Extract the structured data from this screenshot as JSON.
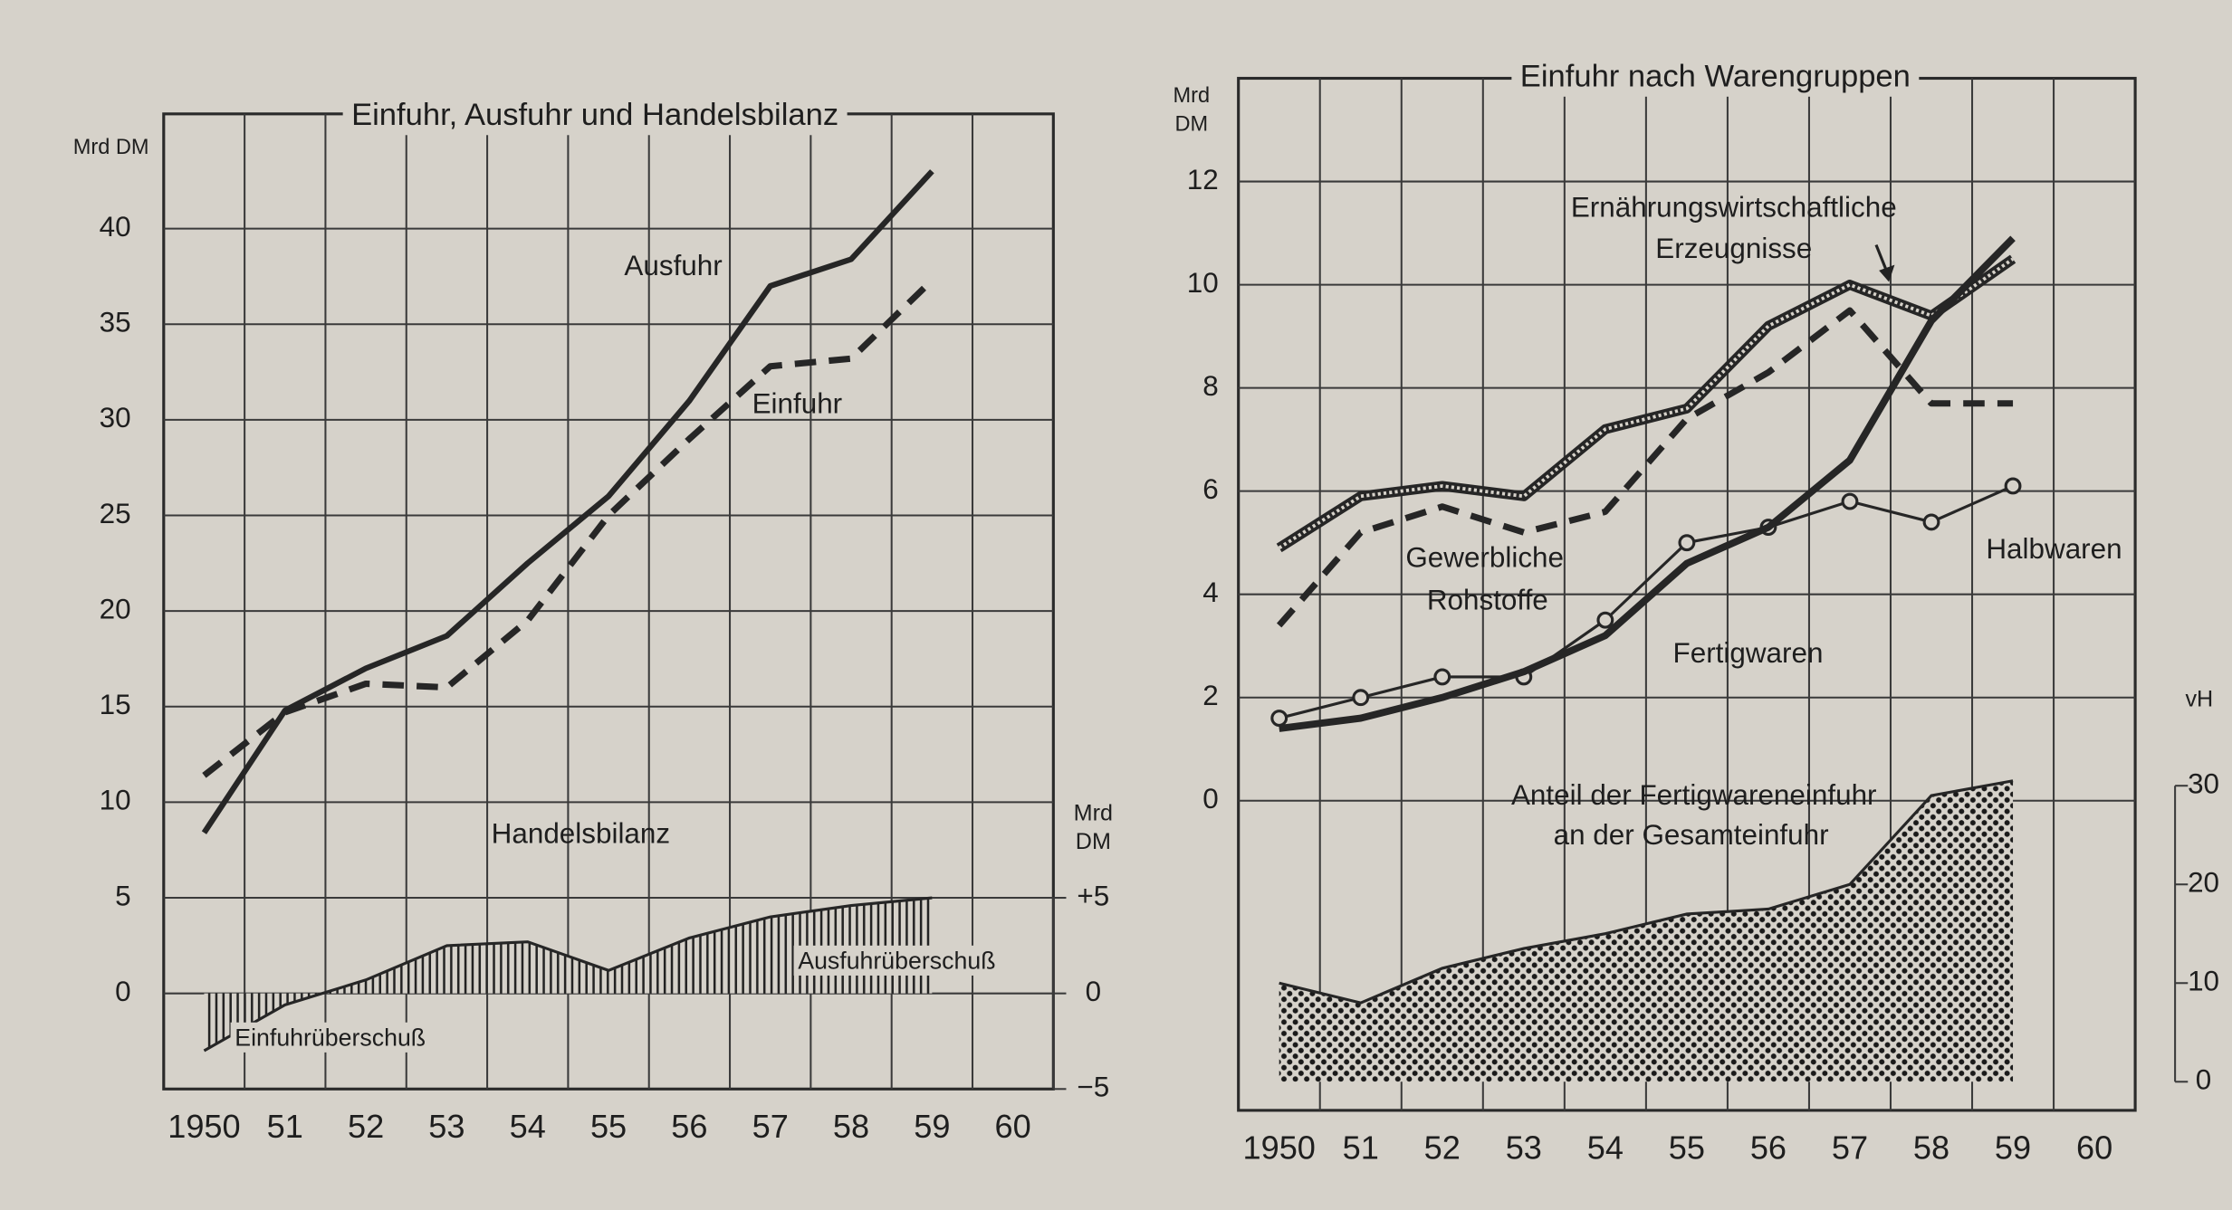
{
  "chart_data": [
    {
      "type": "line",
      "title": "Einfuhr, Ausfuhr und Handelsbilanz",
      "y_label": "Mrd DM",
      "y2_label": [
        "Mrd",
        "DM"
      ],
      "categories": [
        "1950",
        "51",
        "52",
        "53",
        "54",
        "55",
        "56",
        "57",
        "58",
        "59",
        "60"
      ],
      "series": [
        {
          "name": "Ausfuhr",
          "color": "#262626",
          "line_style": "solid",
          "values": [
            8.4,
            14.8,
            17.0,
            18.7,
            22.5,
            26.0,
            31.0,
            37.0,
            38.4,
            43.0,
            null
          ]
        },
        {
          "name": "Einfuhr",
          "color": "#262626",
          "line_style": "dashed",
          "values": [
            11.4,
            14.7,
            16.2,
            16.0,
            19.5,
            25.0,
            29.0,
            32.8,
            33.2,
            37.3,
            null
          ]
        },
        {
          "name": "Handelsbilanz",
          "color": "#262626",
          "line_style": "hatched-area",
          "axis": "y2",
          "values": [
            -3.0,
            -0.6,
            0.7,
            2.5,
            2.7,
            1.2,
            2.9,
            4.0,
            4.6,
            5.0,
            null
          ]
        }
      ],
      "annotations": [
        "Ausfuhrüberschuß",
        "Einfuhrüberschuß"
      ],
      "ylim": [
        -5,
        46
      ],
      "yticks": [
        0,
        5,
        10,
        15,
        20,
        25,
        30,
        35,
        40
      ],
      "y2lim": [
        -5,
        46
      ],
      "y2ticks": [
        {
          "value": 5,
          "label": "+5"
        },
        0,
        {
          "value": -5,
          "label": "−5"
        }
      ],
      "grid": true
    },
    {
      "type": "line",
      "title": "Einfuhr nach Warengruppen",
      "y_label": [
        "Mrd",
        "DM"
      ],
      "y2_label": "vH",
      "categories": [
        "1950",
        "51",
        "52",
        "53",
        "54",
        "55",
        "56",
        "57",
        "58",
        "59",
        "60"
      ],
      "series": [
        {
          "name": [
            "Ernährungswirtschaftliche",
            "Erzeugnisse"
          ],
          "color": "#262626",
          "line_style": "dotted-double",
          "values": [
            4.9,
            5.9,
            6.1,
            5.9,
            7.2,
            7.6,
            9.2,
            10.0,
            9.4,
            10.5,
            null
          ]
        },
        {
          "name": [
            "Gewerbliche",
            "Rohstoffe"
          ],
          "color": "#262626",
          "line_style": "dashed",
          "values": [
            3.4,
            5.2,
            5.7,
            5.2,
            5.6,
            7.4,
            8.3,
            9.5,
            7.7,
            7.7,
            null
          ]
        },
        {
          "name": "Halbwaren",
          "color": "#262626",
          "line_style": "circles",
          "values": [
            1.6,
            2.0,
            2.4,
            2.4,
            3.5,
            5.0,
            5.3,
            5.8,
            5.4,
            6.1,
            null
          ]
        },
        {
          "name": "Fertigwaren",
          "color": "#262626",
          "line_style": "solid",
          "values": [
            1.4,
            1.6,
            2.0,
            2.5,
            3.2,
            4.6,
            5.3,
            6.6,
            9.3,
            10.9,
            null
          ]
        },
        {
          "name": [
            "Anteil der Fertigwareneinfuhr",
            "an der Gesamteinfuhr"
          ],
          "color": "#262626",
          "line_style": "dotted-area",
          "axis": "y2",
          "values": [
            10.0,
            8.0,
            11.5,
            13.5,
            15.0,
            17.0,
            17.5,
            20.0,
            29.0,
            30.5,
            null
          ]
        }
      ],
      "ylim": [
        -6,
        14
      ],
      "yticks": [
        0,
        2,
        4,
        6,
        8,
        10,
        12
      ],
      "y2lim": [
        -2.9,
        101.7
      ],
      "y2ticks": [
        0,
        10,
        20,
        30
      ],
      "grid": true
    }
  ]
}
